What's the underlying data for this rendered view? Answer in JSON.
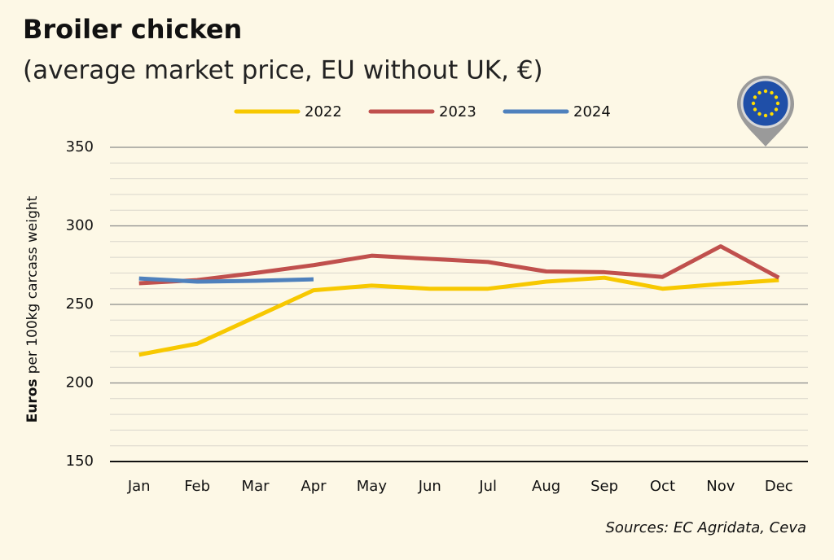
{
  "chart_data": {
    "type": "line",
    "title": "Broiler chicken",
    "subtitle": "(average market price, EU without UK, €)",
    "ylabel": [
      "Euros",
      "per 100kg carcass weight"
    ],
    "source": "Sources: EC Agridata, Ceva",
    "categories": [
      "Jan",
      "Feb",
      "Mar",
      "Apr",
      "May",
      "Jun",
      "Jul",
      "Aug",
      "Sep",
      "Oct",
      "Nov",
      "Dec"
    ],
    "series": [
      {
        "name": "2022",
        "color": "#f7c800",
        "values": [
          218,
          225,
          242,
          259,
          262,
          260,
          260,
          264.5,
          267,
          260,
          263,
          265.5
        ]
      },
      {
        "name": "2023",
        "color": "#c0504d",
        "values": [
          263.5,
          265.5,
          270,
          275,
          281,
          279,
          277,
          271,
          270.5,
          267.5,
          287,
          267
        ]
      },
      {
        "name": "2024",
        "color": "#4f81bd",
        "values": [
          266.5,
          264.5,
          265,
          266,
          null,
          null,
          null,
          null,
          null,
          null,
          null,
          null
        ]
      }
    ],
    "ylim": [
      150,
      350
    ],
    "yticks": [
      150,
      200,
      250,
      300,
      350
    ],
    "minor_yticks": [
      160,
      170,
      180,
      190,
      210,
      220,
      230,
      240,
      260,
      270,
      280,
      290,
      310,
      320,
      330,
      340
    ],
    "grid": true,
    "legend": "top"
  }
}
